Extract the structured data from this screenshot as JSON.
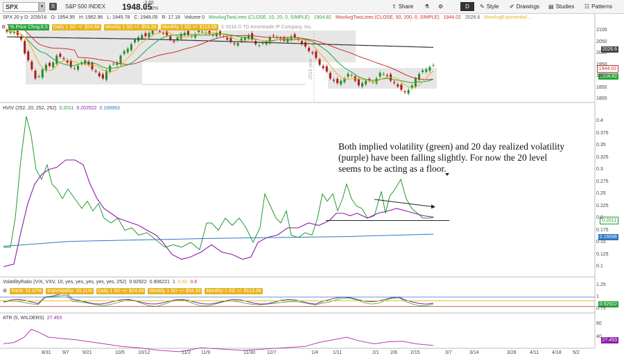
{
  "toolbar": {
    "symbol": "SPX",
    "symbol_badge": "S",
    "name": "S&P 500 INDEX",
    "price": "1948.05",
    "change": "-3.65",
    "change_pct": "-0.19%",
    "share": "Share",
    "period": "D",
    "style": "Style",
    "drawings": "Drawings",
    "studies": "Studies",
    "patterns": "Patterns"
  },
  "info": {
    "desc": "SPX 20 y D: 2/26/16",
    "open": "O: 1954.95",
    "high": "H: 1962.96",
    "low": "L: 1945.78",
    "close": "C: 1948.05",
    "range": "R: 17.18",
    "volume": "Volume 0",
    "ma1": "MovAvgTwoLines (CLOSE, 10, 20, 0, SIMPLE)",
    "ma1v": "1904.82",
    "ma2": "MovAvgTwoLines (CLOSE, 50, 200, 0, SIMPLE)",
    "ma2v": "1944.02",
    "ma2v2": "2026.6",
    "ma3": "MovAvgExponential ..."
  },
  "price_panel": {
    "pct_label": "% Price Chng:6.5",
    "daily": "Daily 1 SD +/- $24.68",
    "weekly": "Weekly 1 SD +/- $54.33",
    "monthly": "Monthly 1 SD +/- $113.09",
    "copyright": "© 2016 © TD Ameritrade IP Company, Inc.",
    "year_marker": "2015 year",
    "axis": [
      "2100",
      "2050",
      "2000",
      "1950",
      "1900",
      "1850",
      "1800"
    ],
    "tags": {
      "ma200": "2026.6",
      "ma50": "1944.02",
      "ma20": "1904.82"
    }
  },
  "hviv": {
    "title": "HVIV (252, 20, 252, 252)",
    "v1": "0.2011",
    "v2": "0.202522",
    "v3": "0.166963",
    "axis": [
      "0.4",
      "0.375",
      "0.35",
      "0.325",
      "0.3",
      "0.275",
      "0.25",
      "0.225",
      "0.2",
      "0.175",
      "0.15",
      "0.125",
      "0.1"
    ],
    "tags": {
      "iv": "0.2011",
      "hv": "0.16696"
    }
  },
  "annotation": "Both implied volatility (green) and 20 day realized volatility (purple) have been falling slightly.  For now the 20 level seems to be acting as a floor.",
  "vr": {
    "title": "VolatilityRatio (VIX, VXV, 10, yes, yes, yes, yes, yes, 252)",
    "v1": "0.92922",
    "v2": "0.906221",
    "v3": "1",
    "v4": "0.92",
    "v5": "0.8",
    "rank": "Rank: 31.07%",
    "impvol": "ImpVolatility: 20.11%",
    "daily": "Daily 1 SD +/- $24.68",
    "weekly": "Weekly 1 SD +/- $54.33",
    "monthly": "Monthly 1 SD +/- $113.09",
    "axis": [
      "1.25",
      "1",
      "0.75"
    ],
    "tag": "0.92922"
  },
  "atr": {
    "title": "ATR (5, WILDERS)",
    "value": "27.453",
    "axis": [
      "60",
      "40"
    ],
    "tag": "27.453"
  },
  "xaxis": [
    "8/31",
    "9/7",
    "9/21",
    "10/5",
    "10/12",
    "11/2",
    "11/9",
    "11/30",
    "12/7",
    "1/4",
    "1/11",
    "2/1",
    "2/8",
    "2/15",
    "3/7",
    "3/14",
    "3/28",
    "4/11",
    "4/18",
    "5/2"
  ],
  "colors": {
    "up": "#2a8a2a",
    "down": "#b01818",
    "iv": "#1f9a2b",
    "hv": "#8a1aa8",
    "baseline": "#2a77c0",
    "ma_yellow": "#e8b21a",
    "ma_red": "#c83030",
    "ma_green": "#27a33a",
    "ma_black": "#333"
  }
}
